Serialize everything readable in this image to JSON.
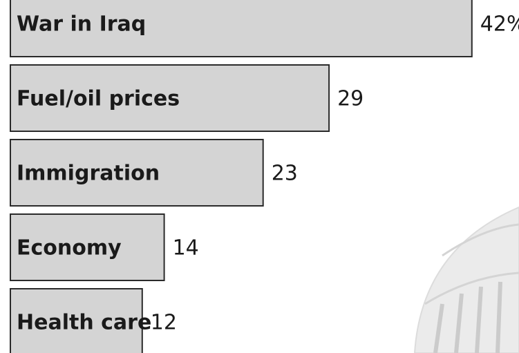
{
  "chart_data": {
    "type": "bar",
    "orientation": "horizontal",
    "categories": [
      "War in Iraq",
      "Fuel/oil prices",
      "Immigration",
      "Economy",
      "Health care"
    ],
    "values": [
      42,
      29,
      23,
      14,
      12
    ],
    "value_labels": [
      "42%",
      "29",
      "23",
      "14",
      "12"
    ],
    "color": "#d4d4d4"
  }
}
